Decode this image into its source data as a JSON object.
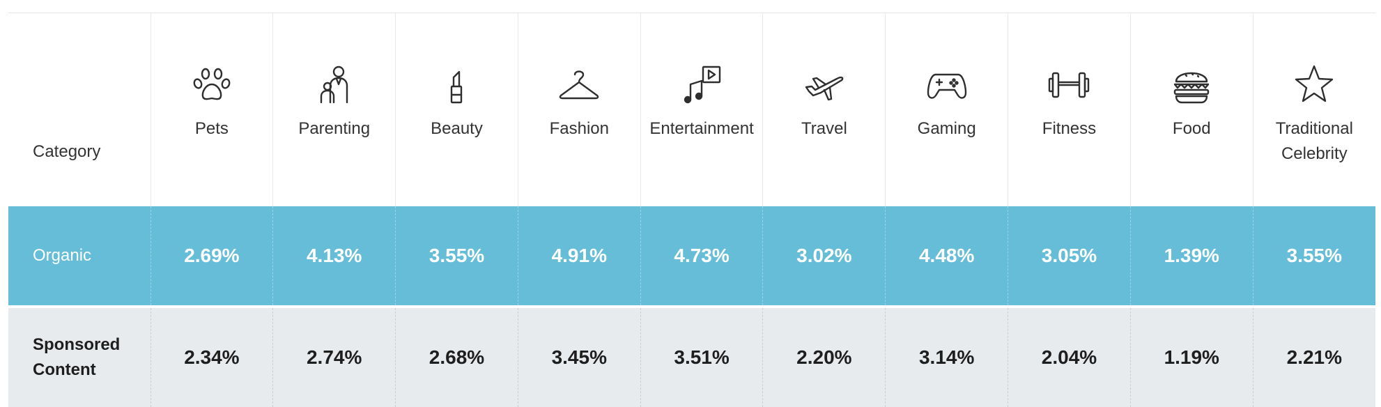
{
  "chart_data": {
    "type": "table",
    "row_header_label": "Category",
    "categories": [
      "Pets",
      "Parenting",
      "Beauty",
      "Fashion",
      "Entertainment",
      "Travel",
      "Gaming",
      "Fitness",
      "Food",
      "Traditional Celebrity"
    ],
    "category_icons": [
      "paw-icon",
      "parent-child-icon",
      "lipstick-icon",
      "hanger-icon",
      "music-video-icon",
      "airplane-icon",
      "gamepad-icon",
      "dumbbell-icon",
      "burger-icon",
      "star-icon"
    ],
    "series": [
      {
        "name": "Organic",
        "values": [
          2.69,
          4.13,
          3.55,
          4.91,
          4.73,
          3.02,
          4.48,
          3.05,
          1.39,
          3.55
        ],
        "labels": [
          "2.69%",
          "4.13%",
          "3.55%",
          "4.91%",
          "4.73%",
          "3.02%",
          "4.48%",
          "3.05%",
          "1.39%",
          "3.55%"
        ],
        "row_color": "#66bdd7"
      },
      {
        "name": "Sponsored Content",
        "values": [
          2.34,
          2.74,
          2.68,
          3.45,
          3.51,
          2.2,
          3.14,
          2.04,
          1.19,
          2.21
        ],
        "labels": [
          "2.34%",
          "2.74%",
          "2.68%",
          "3.45%",
          "3.51%",
          "2.20%",
          "3.14%",
          "2.04%",
          "1.19%",
          "2.21%"
        ],
        "row_color": "#e8ebee"
      }
    ],
    "unit": "%"
  }
}
